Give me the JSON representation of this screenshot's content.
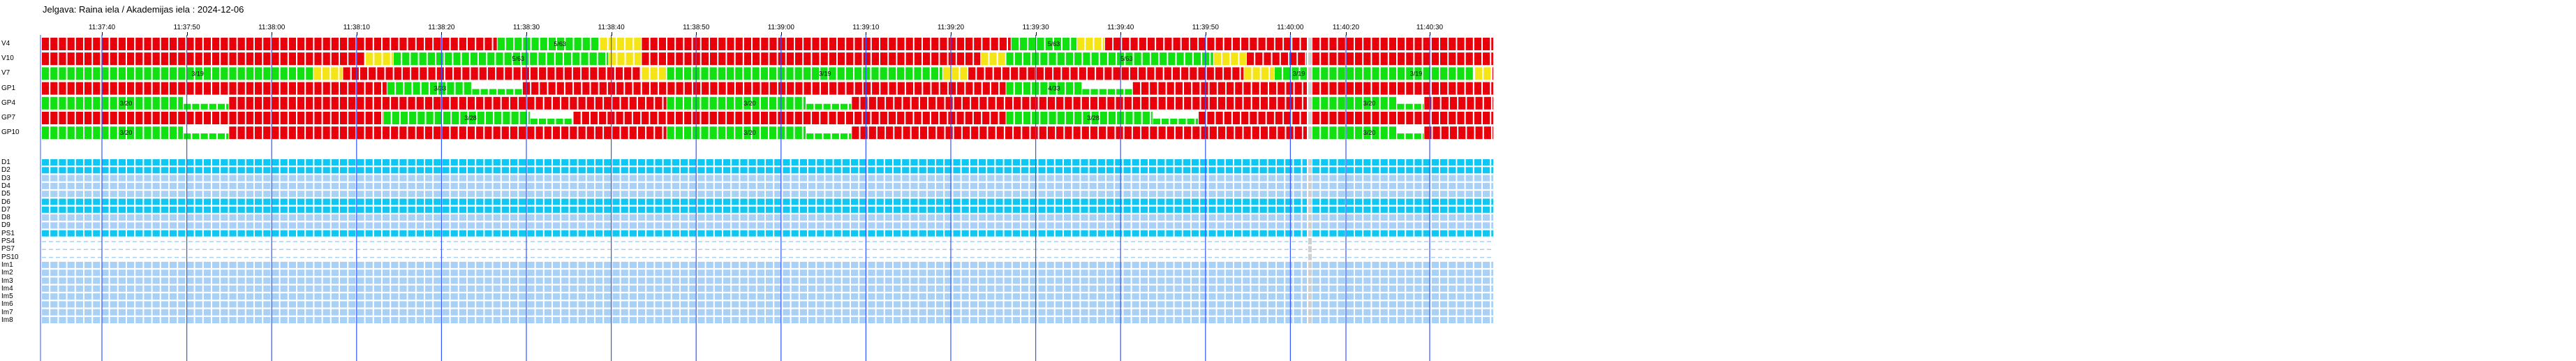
{
  "title": "Jelgava: Raina iela / Akademijas iela : 2024-12-06",
  "time_ticks": [
    "11:37:40",
    "11:37:50",
    "11:38:00",
    "11:38:10",
    "11:38:20",
    "11:38:30",
    "11:38:40",
    "11:38:50",
    "11:39:00",
    "11:39:10",
    "11:39:20",
    "11:39:30",
    "11:39:40",
    "11:39:50",
    "11:40:00",
    "11:40:20",
    "11:40:30"
  ],
  "colors": {
    "red": "#e8000b",
    "green": "#11e011",
    "yellow": "#f5e416",
    "cyan": "#10c6f2",
    "light_blue": "#a9d1f5",
    "gap_gray": "#cfcfcf",
    "grid_blue": "#3355ff"
  },
  "signal_groups": [
    {
      "label": "V4",
      "segments": [
        {
          "state": "red",
          "from": 0,
          "to": 0.36
        },
        {
          "state": "green",
          "from": 0.36,
          "to": 0.441,
          "timer": "5/63"
        },
        {
          "state": "yellow",
          "from": 0.441,
          "to": 0.474
        },
        {
          "state": "red",
          "from": 0.474,
          "to": 0.766
        },
        {
          "state": "green",
          "from": 0.766,
          "to": 0.818,
          "timer": "5/63"
        },
        {
          "state": "yellow",
          "from": 0.818,
          "to": 0.84
        },
        {
          "state": "red",
          "from": 0.84,
          "to": 1
        }
      ]
    },
    {
      "label": "V10",
      "segments": [
        {
          "state": "red",
          "from": 0,
          "to": 0.256
        },
        {
          "state": "yellow",
          "from": 0.256,
          "to": 0.278
        },
        {
          "state": "green",
          "from": 0.278,
          "to": 0.448,
          "timer": "5/63"
        },
        {
          "state": "yellow",
          "from": 0.448,
          "to": 0.474
        },
        {
          "state": "red",
          "from": 0.474,
          "to": 0.742
        },
        {
          "state": "yellow",
          "from": 0.742,
          "to": 0.762
        },
        {
          "state": "green",
          "from": 0.762,
          "to": 0.926,
          "timer": "5/63"
        },
        {
          "state": "yellow",
          "from": 0.926,
          "to": 0.952
        },
        {
          "state": "red",
          "from": 0.952,
          "to": 1
        }
      ]
    },
    {
      "label": "V7",
      "segments": [
        {
          "state": "green",
          "from": 0,
          "to": 0.215,
          "timer": "3/19"
        },
        {
          "state": "yellow",
          "from": 0.215,
          "to": 0.238
        },
        {
          "state": "red",
          "from": 0.238,
          "to": 0.474
        },
        {
          "state": "yellow",
          "from": 0.474,
          "to": 0.494
        },
        {
          "state": "green",
          "from": 0.494,
          "to": 0.712,
          "timer": "3/19"
        },
        {
          "state": "yellow",
          "from": 0.712,
          "to": 0.732
        },
        {
          "state": "red",
          "from": 0.732,
          "to": 0.95
        },
        {
          "state": "yellow",
          "from": 0.95,
          "to": 0.974
        },
        {
          "state": "green",
          "from": 0.974,
          "to": 1,
          "timer": "3/19"
        },
        {
          "state": "yellow",
          "from": 1,
          "to": 1.03
        }
      ]
    },
    {
      "label": "GP1",
      "segments": [
        {
          "state": "red",
          "from": 0,
          "to": 0.273
        },
        {
          "state": "green",
          "from": 0.273,
          "to": 0.34,
          "timer": "3/33"
        },
        {
          "state": "flash",
          "from": 0.34,
          "to": 0.38
        },
        {
          "state": "red",
          "from": 0.38,
          "to": 0.762
        },
        {
          "state": "green",
          "from": 0.762,
          "to": 0.822,
          "timer": "4/33"
        },
        {
          "state": "flash",
          "from": 0.822,
          "to": 0.862
        },
        {
          "state": "red",
          "from": 0.862,
          "to": 1
        }
      ]
    },
    {
      "label": "GP4",
      "segments": [
        {
          "state": "green",
          "from": 0,
          "to": 0.112,
          "timer": "3/20"
        },
        {
          "state": "flash",
          "from": 0.112,
          "to": 0.148
        },
        {
          "state": "red",
          "from": 0.148,
          "to": 0.494
        },
        {
          "state": "green",
          "from": 0.494,
          "to": 0.604,
          "timer": "3/20"
        },
        {
          "state": "flash",
          "from": 0.604,
          "to": 0.64
        },
        {
          "state": "red",
          "from": 0.64,
          "to": 1
        },
        {
          "state": "green",
          "from": 1,
          "to": 1.03,
          "timer": "5/20"
        },
        {
          "state": "flash",
          "from": 1.03,
          "to": 1.07
        },
        {
          "state": "red",
          "from": 1.07,
          "to": 1.2
        }
      ]
    },
    {
      "label": "GP7",
      "segments": [
        {
          "state": "red",
          "from": 0,
          "to": 0.27
        },
        {
          "state": "green",
          "from": 0.27,
          "to": 0.386,
          "timer": "3/28"
        },
        {
          "state": "flash",
          "from": 0.386,
          "to": 0.42
        },
        {
          "state": "red",
          "from": 0.42,
          "to": 0.762
        },
        {
          "state": "green",
          "from": 0.762,
          "to": 0.878,
          "timer": "3/28"
        },
        {
          "state": "flash",
          "from": 0.878,
          "to": 0.914
        },
        {
          "state": "red",
          "from": 0.914,
          "to": 1
        }
      ]
    },
    {
      "label": "GP10",
      "segments": [
        {
          "state": "green",
          "from": 0,
          "to": 0.112,
          "timer": "3/20"
        },
        {
          "state": "flash",
          "from": 0.112,
          "to": 0.148
        },
        {
          "state": "red",
          "from": 0.148,
          "to": 0.494
        },
        {
          "state": "green",
          "from": 0.494,
          "to": 0.604,
          "timer": "3/20"
        },
        {
          "state": "flash",
          "from": 0.604,
          "to": 0.64
        },
        {
          "state": "red",
          "from": 0.64,
          "to": 1
        },
        {
          "state": "green",
          "from": 1,
          "to": 1.03,
          "timer": "3/20"
        },
        {
          "state": "flash",
          "from": 1.03,
          "to": 1.07
        },
        {
          "state": "red",
          "from": 1.07,
          "to": 1.2
        }
      ]
    }
  ],
  "detector_rows": [
    {
      "label": "D1",
      "color": "cyan"
    },
    {
      "label": "D2",
      "color": "cyan"
    },
    {
      "label": "D3",
      "color": "light_blue"
    },
    {
      "label": "D4",
      "color": "light_blue"
    },
    {
      "label": "D5",
      "color": "light_blue"
    },
    {
      "label": "D6",
      "color": "cyan"
    },
    {
      "label": "D7",
      "color": "cyan"
    },
    {
      "label": "D8",
      "color": "light_blue"
    },
    {
      "label": "D9",
      "color": "light_blue"
    },
    {
      "label": "PS1",
      "color": "cyan"
    },
    {
      "label": "PS4",
      "color": "dashed"
    },
    {
      "label": "PS7",
      "color": "dashed"
    },
    {
      "label": "PS10",
      "color": "dashed"
    },
    {
      "label": "Im1",
      "color": "light_blue"
    },
    {
      "label": "Im2",
      "color": "light_blue"
    },
    {
      "label": "Im3",
      "color": "light_blue"
    },
    {
      "label": "Im4",
      "color": "light_blue"
    },
    {
      "label": "Im5",
      "color": "light_blue"
    },
    {
      "label": "Im6",
      "color": "light_blue"
    },
    {
      "label": "Im7",
      "color": "light_blue"
    },
    {
      "label": "Im8",
      "color": "light_blue"
    }
  ]
}
